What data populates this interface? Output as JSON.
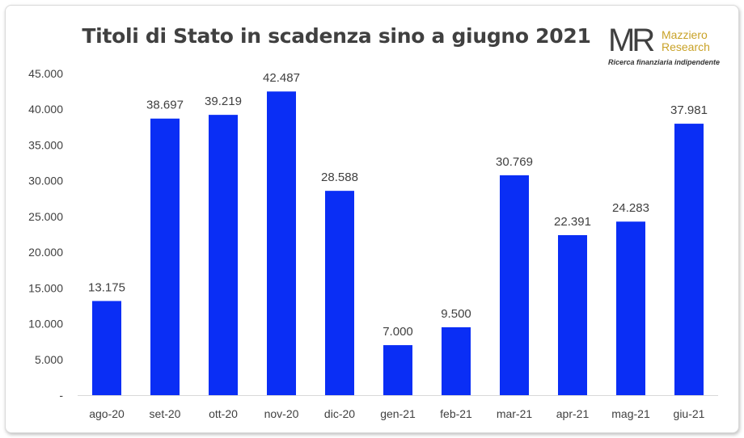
{
  "chart_data": {
    "type": "bar",
    "title": "Titoli di Stato in scadenza sino a giugno 2021",
    "categories": [
      "ago-20",
      "set-20",
      "ott-20",
      "nov-20",
      "dic-20",
      "gen-21",
      "feb-21",
      "mar-21",
      "apr-21",
      "mag-21",
      "giu-21"
    ],
    "values": [
      13175,
      38697,
      39219,
      42487,
      28588,
      7000,
      9500,
      30769,
      22391,
      24283,
      37981
    ],
    "value_labels": [
      "13.175",
      "38.697",
      "39.219",
      "42.487",
      "28.588",
      "7.000",
      "9.500",
      "30.769",
      "22.391",
      "24.283",
      "37.981"
    ],
    "yticks": [
      0,
      5000,
      10000,
      15000,
      20000,
      25000,
      30000,
      35000,
      40000,
      45000
    ],
    "ytick_labels": [
      "-",
      "5.000",
      "10.000",
      "15.000",
      "20.000",
      "25.000",
      "30.000",
      "35.000",
      "40.000",
      "45.000"
    ],
    "ylim": [
      0,
      45000
    ],
    "grid": false,
    "bar_color": "#0a2ef5",
    "xlabel": "",
    "ylabel": ""
  },
  "logo": {
    "mark": "MR",
    "name_line1": "Mazziero",
    "name_line2": "Research",
    "tagline": "Ricerca finanziaria indipendente"
  }
}
